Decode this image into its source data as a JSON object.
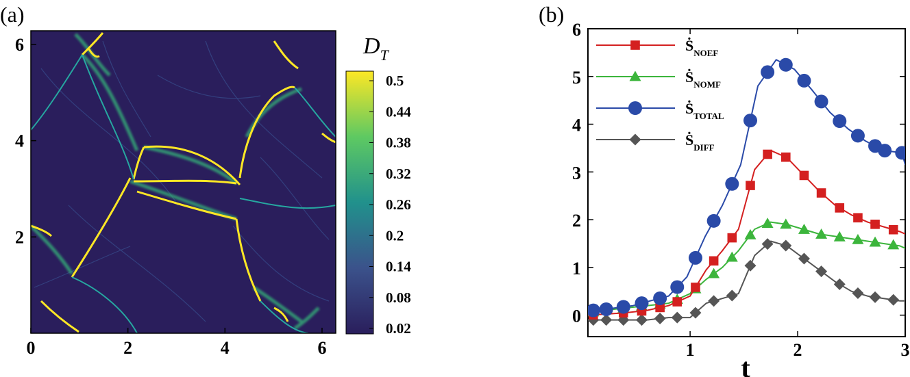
{
  "chart_data": [
    {
      "type": "heatmap",
      "panel_label": "(a)",
      "title": "",
      "xlabel": "",
      "ylabel": "",
      "xlim": [
        0,
        6.283
      ],
      "ylim": [
        0,
        6.283
      ],
      "xticks": [
        0,
        2,
        4,
        6
      ],
      "yticks": [
        2,
        4,
        6
      ],
      "colorbar": {
        "title_main": "D",
        "title_sub": "T",
        "ticks": [
          "0.5",
          "0.44",
          "0.38",
          "0.32",
          "0.26",
          "0.2",
          "0.14",
          "0.08",
          "0.02"
        ],
        "range": [
          0.02,
          0.5
        ],
        "colormap": [
          "#440154",
          "#3b528b",
          "#21918c",
          "#5ec962",
          "#fde725"
        ]
      },
      "background_color": "#2a1e5c",
      "high_color": "#fde725",
      "mid_color": "#35b779"
    },
    {
      "type": "line",
      "panel_label": "(b)",
      "title": "",
      "xlabel": "t",
      "ylabel": "",
      "xlim": [
        0.05,
        3.0
      ],
      "ylim": [
        -0.45,
        6
      ],
      "xticks": [
        1,
        2,
        3
      ],
      "yticks": [
        0,
        1,
        2,
        3,
        4,
        5,
        6
      ],
      "legend_position": "top-left",
      "series": [
        {
          "name": "Ṡ",
          "sub": "TOTAL",
          "color": "#2a4aa8",
          "marker": "circle",
          "x": [
            0.05,
            0.15,
            0.3,
            0.47,
            0.63,
            0.8,
            0.97,
            1.14,
            1.3,
            1.47,
            1.63,
            1.8,
            1.97,
            2.14,
            2.3,
            2.47,
            2.63,
            2.8,
            2.97,
            3.0
          ],
          "markers": [
            0.1,
            0.22,
            0.38,
            0.55,
            0.72,
            0.88,
            1.05,
            1.22,
            1.39,
            1.56,
            1.72,
            1.89,
            2.06,
            2.22,
            2.39,
            2.56,
            2.72,
            2.81,
            2.97
          ],
          "values": [
            0.1,
            0.1,
            0.15,
            0.2,
            0.3,
            0.4,
            0.8,
            1.65,
            2.3,
            3.15,
            4.8,
            5.35,
            5.15,
            4.7,
            4.25,
            3.9,
            3.65,
            3.45,
            3.4,
            3.15
          ]
        },
        {
          "name": "Ṡ",
          "sub": "NOEF",
          "color": "#d42020",
          "marker": "square",
          "x": [
            0.05,
            0.2,
            0.4,
            0.6,
            0.8,
            1.0,
            1.15,
            1.3,
            1.45,
            1.6,
            1.75,
            1.9,
            2.05,
            2.2,
            2.35,
            2.5,
            2.65,
            2.8,
            2.95,
            3.0
          ],
          "markers": [
            0.1,
            0.38,
            0.55,
            0.72,
            0.88,
            1.05,
            1.22,
            1.39,
            1.56,
            1.72,
            1.89,
            2.06,
            2.22,
            2.39,
            2.56,
            2.72,
            2.89
          ],
          "values": [
            0.0,
            0.02,
            0.05,
            0.1,
            0.2,
            0.4,
            0.95,
            1.35,
            1.8,
            3.05,
            3.45,
            3.3,
            2.95,
            2.6,
            2.3,
            2.1,
            1.95,
            1.85,
            1.75,
            1.7
          ]
        },
        {
          "name": "Ṡ",
          "sub": "NOMF",
          "color": "#3cb53c",
          "marker": "triangle",
          "x": [
            0.05,
            0.2,
            0.4,
            0.6,
            0.8,
            1.0,
            1.15,
            1.3,
            1.45,
            1.6,
            1.75,
            1.9,
            2.05,
            2.2,
            2.35,
            2.5,
            2.65,
            2.8,
            2.95,
            3.0
          ],
          "markers": [
            0.1,
            0.38,
            0.55,
            0.72,
            0.88,
            1.05,
            1.22,
            1.39,
            1.56,
            1.72,
            1.89,
            2.06,
            2.22,
            2.39,
            2.56,
            2.72,
            2.89
          ],
          "values": [
            0.05,
            0.1,
            0.15,
            0.2,
            0.25,
            0.45,
            0.75,
            1.0,
            1.35,
            1.8,
            1.95,
            1.9,
            1.8,
            1.7,
            1.65,
            1.6,
            1.55,
            1.5,
            1.45,
            1.4
          ]
        },
        {
          "name": "Ṡ",
          "sub": "DIFF",
          "color": "#555555",
          "marker": "diamond",
          "x": [
            0.05,
            0.2,
            0.4,
            0.6,
            0.8,
            1.0,
            1.15,
            1.3,
            1.45,
            1.6,
            1.75,
            1.9,
            2.05,
            2.2,
            2.35,
            2.5,
            2.65,
            2.8,
            2.95,
            3.0
          ],
          "markers": [
            0.1,
            0.22,
            0.38,
            0.55,
            0.72,
            0.88,
            1.05,
            1.22,
            1.39,
            1.56,
            1.72,
            1.89,
            2.06,
            2.22,
            2.39,
            2.56,
            2.72,
            2.89
          ],
          "values": [
            -0.1,
            -0.1,
            -0.1,
            -0.1,
            -0.05,
            -0.05,
            0.25,
            0.35,
            0.45,
            1.25,
            1.55,
            1.45,
            1.2,
            0.95,
            0.7,
            0.5,
            0.4,
            0.35,
            0.3,
            0.3
          ]
        }
      ]
    }
  ]
}
